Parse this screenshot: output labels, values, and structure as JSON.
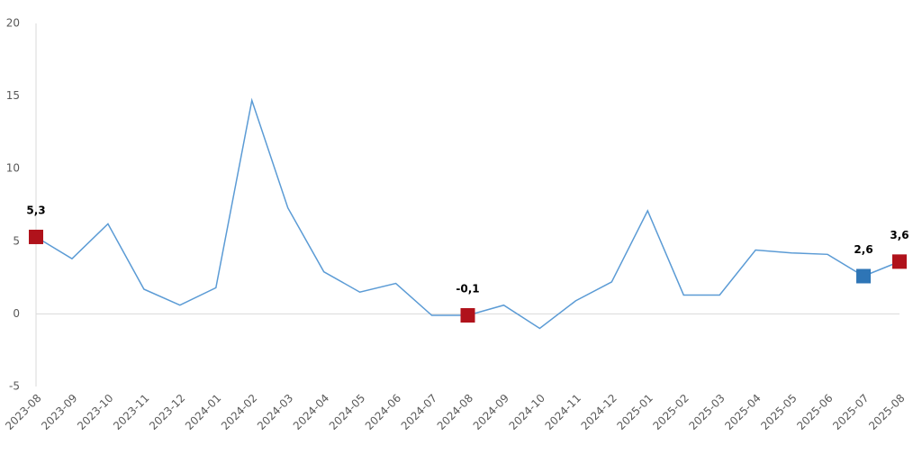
{
  "chart_data": {
    "type": "line",
    "categories": [
      "2023-08",
      "2023-09",
      "2023-10",
      "2023-11",
      "2023-12",
      "2024-01",
      "2024-02",
      "2024-03",
      "2024-04",
      "2024-05",
      "2024-06",
      "2024-07",
      "2024-08",
      "2024-09",
      "2024-10",
      "2024-11",
      "2024-12",
      "2025-01",
      "2025-02",
      "2025-03",
      "2025-04",
      "2025-05",
      "2025-06",
      "2025-07",
      "2025-08"
    ],
    "values": [
      5.3,
      3.8,
      6.2,
      1.7,
      0.6,
      1.8,
      14.7,
      7.3,
      2.9,
      1.5,
      2.1,
      -0.1,
      -0.1,
      0.6,
      -1.0,
      0.9,
      2.2,
      7.1,
      1.3,
      1.3,
      4.4,
      4.2,
      4.1,
      2.6,
      3.6
    ],
    "value_labels": [
      "5,3",
      null,
      null,
      null,
      null,
      null,
      null,
      null,
      null,
      null,
      null,
      null,
      "-0,1",
      null,
      null,
      null,
      null,
      null,
      null,
      null,
      null,
      null,
      null,
      "2,6",
      "3,6"
    ],
    "marker_colors": [
      "#b0121b",
      null,
      null,
      null,
      null,
      null,
      null,
      null,
      null,
      null,
      null,
      null,
      "#b0121b",
      null,
      null,
      null,
      null,
      null,
      null,
      null,
      null,
      null,
      null,
      "#2e75b6",
      "#b0121b"
    ],
    "color": "#5b9bd5",
    "ylim": [
      -5,
      20
    ],
    "yticks": [
      -5,
      0,
      5,
      10,
      15,
      20
    ],
    "grid": false
  }
}
